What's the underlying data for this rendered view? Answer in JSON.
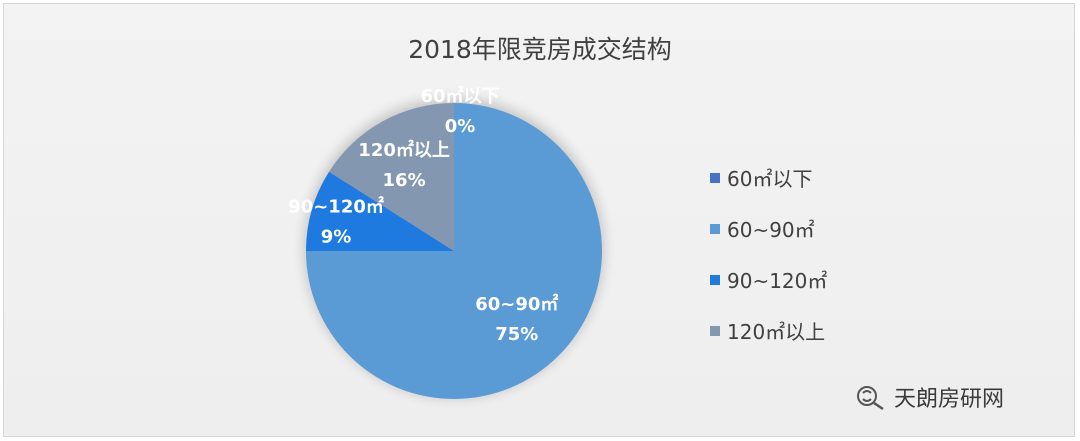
{
  "chart_data": {
    "type": "pie",
    "title": "2018年限竞房成交结构",
    "slices": [
      {
        "label": "60㎡以下",
        "value": 0,
        "percent_label": "0%",
        "color": "#4472c4"
      },
      {
        "label": "60~90㎡",
        "value": 75,
        "percent_label": "75%",
        "color": "#5b9bd5"
      },
      {
        "label": "90~120㎡",
        "value": 9,
        "percent_label": "9%",
        "color": "#1f7ae0"
      },
      {
        "label": "120㎡以上",
        "value": 16,
        "percent_label": "16%",
        "color": "#8497b0"
      }
    ],
    "legend_position": "right"
  },
  "watermark": {
    "text": "天朗房研网",
    "icon": "wechat-search-icon"
  }
}
